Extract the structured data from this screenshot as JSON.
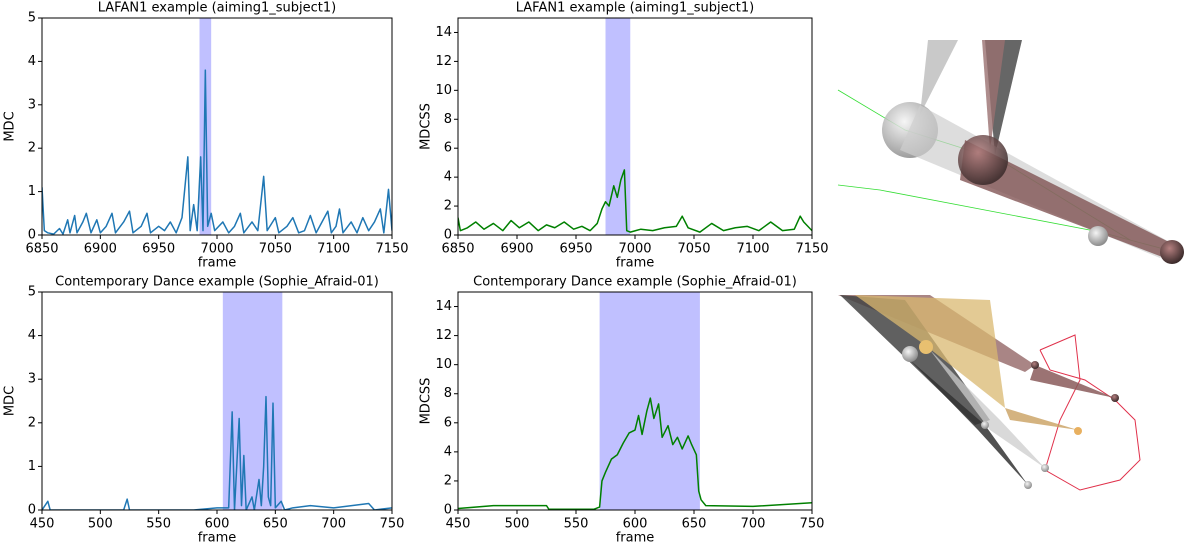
{
  "chart_data": [
    {
      "type": "line",
      "title": "LAFAN1 example (aiming1_subject1)",
      "x_label": "frame",
      "y_label": "MDC",
      "color": "#1f77b4",
      "highlight": {
        "range": [
          6985,
          6995
        ],
        "color": "#c0c0ff"
      },
      "xlim": [
        6850,
        7150
      ],
      "xticks": [
        6850,
        6900,
        6950,
        7000,
        7050,
        7100,
        7150
      ],
      "ylim": [
        0,
        5
      ],
      "yticks": [
        0,
        1,
        2,
        3,
        4,
        5
      ],
      "x": [
        6850,
        6852,
        6855,
        6860,
        6865,
        6868,
        6872,
        6874,
        6878,
        6880,
        6885,
        6888,
        6892,
        6897,
        6900,
        6905,
        6910,
        6913,
        6920,
        6925,
        6928,
        6935,
        6940,
        6943,
        6950,
        6955,
        6960,
        6965,
        6970,
        6975,
        6977,
        6980,
        6983,
        6986,
        6988,
        6990,
        6992,
        6995,
        6998,
        7005,
        7010,
        7015,
        7020,
        7023,
        7030,
        7035,
        7040,
        7043,
        7050,
        7053,
        7060,
        7065,
        7070,
        7075,
        7080,
        7085,
        7090,
        7095,
        7098,
        7102,
        7105,
        7108,
        7115,
        7120,
        7125,
        7130,
        7135,
        7140,
        7143,
        7147,
        7150
      ],
      "values": [
        1.1,
        0.1,
        0.05,
        0.02,
        0.15,
        0.02,
        0.35,
        0.05,
        0.45,
        0.05,
        0.3,
        0.5,
        0.05,
        0.35,
        0.05,
        0.2,
        0.5,
        0.05,
        0.3,
        0.55,
        0.05,
        0.2,
        0.5,
        0.05,
        0.2,
        0.1,
        0.3,
        0.05,
        0.4,
        1.8,
        0.1,
        0.7,
        0.1,
        1.8,
        0.1,
        3.8,
        0.2,
        0.5,
        0.1,
        0.3,
        0.05,
        0.2,
        0.5,
        0.05,
        0.3,
        0.1,
        1.35,
        0.1,
        0.4,
        0.05,
        0.2,
        0.4,
        0.05,
        0.1,
        0.45,
        0.05,
        0.3,
        0.55,
        0.05,
        0.2,
        0.6,
        0.05,
        0.3,
        0.05,
        0.4,
        0.1,
        0.3,
        0.6,
        0.05,
        1.05,
        0.1
      ]
    },
    {
      "type": "line",
      "title": "LAFAN1 example (aiming1_subject1)",
      "x_label": "frame",
      "y_label": "MDCSS",
      "color": "#008000",
      "highlight": {
        "range": [
          6975,
          6996
        ],
        "color": "#c0c0ff"
      },
      "xlim": [
        6850,
        7150
      ],
      "xticks": [
        6850,
        6900,
        6950,
        7000,
        7050,
        7100,
        7150
      ],
      "ylim": [
        0,
        15
      ],
      "yticks": [
        0,
        2,
        4,
        6,
        8,
        10,
        12,
        14
      ],
      "x": [
        6850,
        6852,
        6858,
        6865,
        6872,
        6880,
        6888,
        6895,
        6902,
        6910,
        6918,
        6925,
        6932,
        6940,
        6948,
        6955,
        6962,
        6968,
        6972,
        6975,
        6978,
        6982,
        6985,
        6988,
        6991,
        6993,
        6996,
        7005,
        7015,
        7025,
        7035,
        7040,
        7045,
        7055,
        7065,
        7075,
        7085,
        7095,
        7105,
        7115,
        7125,
        7135,
        7140,
        7143,
        7150
      ],
      "values": [
        1.2,
        0.3,
        0.5,
        0.9,
        0.4,
        0.8,
        0.3,
        1.0,
        0.5,
        0.9,
        0.3,
        0.7,
        0.5,
        0.9,
        0.4,
        0.6,
        0.3,
        0.8,
        1.8,
        2.3,
        2.0,
        3.4,
        2.6,
        3.8,
        4.5,
        0.3,
        0.2,
        0.4,
        0.3,
        0.5,
        0.6,
        1.3,
        0.5,
        0.2,
        0.8,
        0.3,
        0.5,
        0.6,
        0.3,
        0.9,
        0.3,
        0.4,
        1.3,
        0.9,
        0.3
      ]
    },
    {
      "type": "line",
      "title": "Contemporary Dance example (Sophie_Afraid-01)",
      "x_label": "frame",
      "y_label": "MDC",
      "color": "#1f77b4",
      "highlight": {
        "range": [
          605,
          656
        ],
        "color": "#c0c0ff"
      },
      "xlim": [
        450,
        750
      ],
      "xticks": [
        450,
        500,
        550,
        600,
        650,
        700,
        750
      ],
      "ylim": [
        0,
        5
      ],
      "yticks": [
        0,
        1,
        2,
        3,
        4,
        5
      ],
      "x": [
        450,
        455,
        457,
        520,
        523,
        525,
        580,
        600,
        610,
        613,
        615,
        619,
        621,
        623,
        625,
        630,
        632,
        636,
        638,
        640,
        642,
        644,
        646,
        648,
        650,
        655,
        658,
        665,
        680,
        700,
        730,
        735,
        750
      ],
      "values": [
        0,
        0.2,
        0,
        0,
        0.25,
        0,
        0,
        0.05,
        0.05,
        2.25,
        0,
        2.1,
        0.1,
        1.25,
        0,
        0.3,
        0,
        0.7,
        0.1,
        1.0,
        2.6,
        0.3,
        0.1,
        2.45,
        0.05,
        0.2,
        0,
        0.05,
        0.1,
        0.05,
        0.15,
        0,
        0.05
      ]
    },
    {
      "type": "line",
      "title": "Contemporary Dance example (Sophie_Afraid-01)",
      "x_label": "frame",
      "y_label": "MDCSS",
      "color": "#008000",
      "highlight": {
        "range": [
          570,
          655
        ],
        "color": "#c0c0ff"
      },
      "xlim": [
        450,
        750
      ],
      "xticks": [
        450,
        500,
        550,
        600,
        650,
        700,
        750
      ],
      "ylim": [
        0,
        15
      ],
      "yticks": [
        0,
        2,
        4,
        6,
        8,
        10,
        12,
        14
      ],
      "x": [
        450,
        480,
        525,
        527,
        565,
        570,
        572,
        575,
        580,
        585,
        590,
        595,
        600,
        603,
        606,
        610,
        613,
        616,
        620,
        623,
        628,
        632,
        636,
        640,
        645,
        648,
        652,
        654,
        656,
        660,
        700,
        750
      ],
      "values": [
        0.1,
        0.3,
        0.3,
        0.05,
        0.05,
        0.2,
        2.0,
        2.6,
        3.5,
        3.8,
        4.6,
        5.3,
        5.5,
        6.5,
        5.2,
        6.8,
        7.7,
        6.3,
        7.3,
        5.0,
        5.8,
        4.5,
        5.0,
        4.2,
        5.1,
        4.5,
        3.8,
        1.3,
        0.7,
        0.3,
        0.25,
        0.5
      ]
    }
  ]
}
